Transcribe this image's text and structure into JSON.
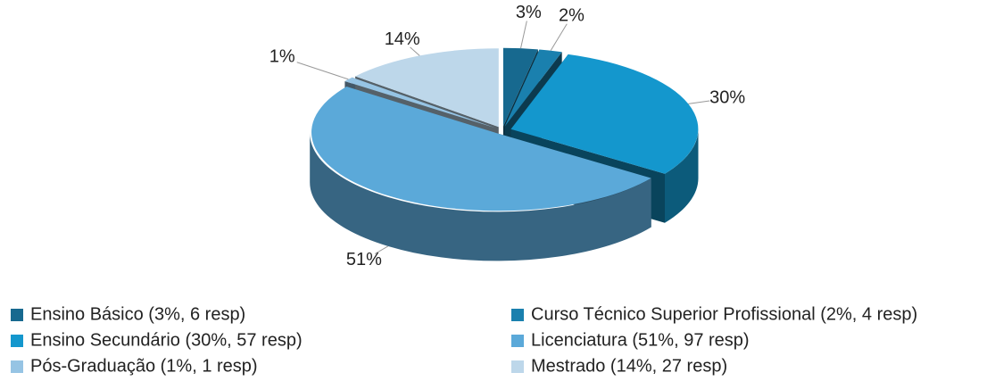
{
  "chart_data": {
    "type": "pie3d",
    "categories": [
      "Ensino Básico (3%, 6 resp)",
      "Curso Técnico Superior Profissional (2%, 4 resp)",
      "Ensino Secundário (30%, 57 resp)",
      "Licenciatura (51%,  97 resp)",
      "Pós-Graduação (1%, 1 resp)",
      "Mestrado (14%, 27 resp)"
    ],
    "values": [
      3,
      2,
      30,
      51,
      1,
      14
    ],
    "value_labels": [
      "3%",
      "2%",
      "30%",
      "51%",
      "1%",
      "14%"
    ],
    "colors": [
      "#17698f",
      "#1a80ae",
      "#1497cd",
      "#5ba9d9",
      "#96c4e4",
      "#bdd7ea"
    ],
    "legend": "bottom"
  }
}
